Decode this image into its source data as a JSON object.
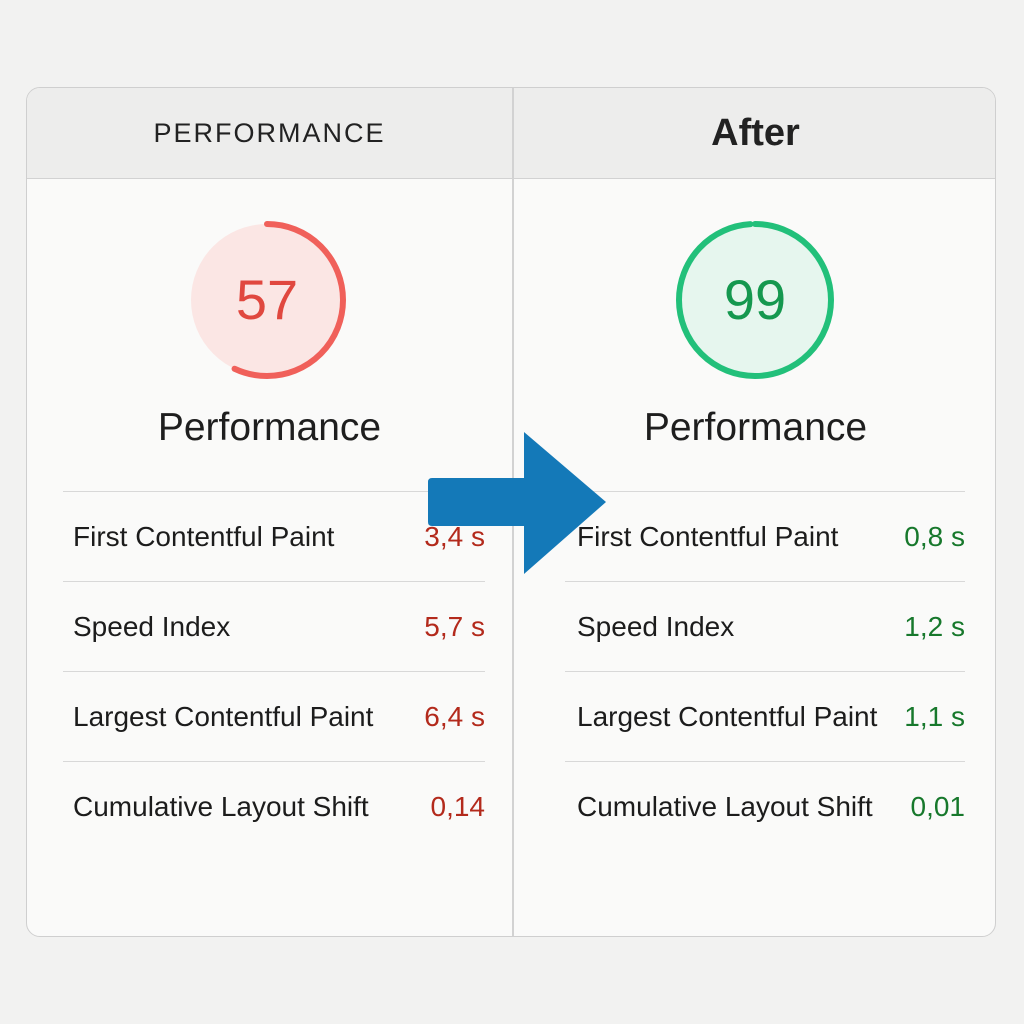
{
  "before": {
    "heading": "PERFORMANCE",
    "score": "57",
    "score_fraction": 0.57,
    "label": "Performance",
    "metrics": [
      {
        "name": "First Contentful Paint",
        "value": "3,4 s"
      },
      {
        "name": "Speed Index",
        "value": "5,7 s"
      },
      {
        "name": "Largest Contentful Paint",
        "value": "6,4 s"
      },
      {
        "name": "Cumulative Layout Shift",
        "value": "0,14"
      }
    ]
  },
  "after": {
    "heading": "After",
    "score": "99",
    "score_fraction": 0.99,
    "label": "Performance",
    "metrics": [
      {
        "name": "First Contentful Paint",
        "value": "0,8 s"
      },
      {
        "name": "Speed Index",
        "value": "1,2 s"
      },
      {
        "name": "Largest Contentful Paint",
        "value": "1,1 s"
      },
      {
        "name": "Cumulative Layout Shift",
        "value": "0,01"
      }
    ]
  },
  "colors": {
    "poor_ring": "#f0605a",
    "poor_fill": "#fbe6e4",
    "poor_text": "#e0483f",
    "poor_value": "#b32a1c",
    "good_ring": "#22c07a",
    "good_fill": "#e6f6ee",
    "good_text": "#15984f",
    "good_value": "#17782c",
    "arrow": "#1479b8"
  },
  "icons": {
    "transition": "arrow-right-icon"
  }
}
